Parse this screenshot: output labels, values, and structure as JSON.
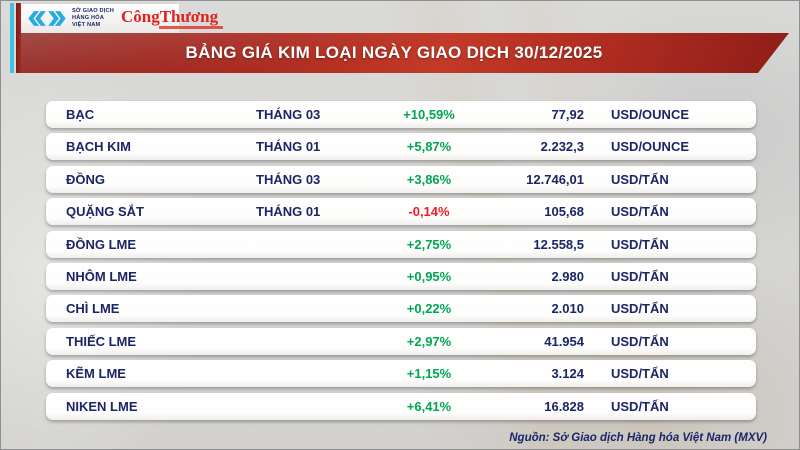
{
  "page": {
    "title_banner": "BẢNG GIÁ KIM LOẠI NGÀY GIAO DỊCH 30/12/2025",
    "source_note": "Nguồn: Sở Giao dịch Hàng hóa Việt Nam (MXV)"
  },
  "logo": {
    "exchange_lines": [
      "SỞ GIAO DỊCH",
      "HÀNG HÓA",
      "VIỆT NAM"
    ],
    "brand": "CôngThương"
  },
  "colors": {
    "up": "#00a651",
    "down": "#ed1c24",
    "navy": "#1b2567",
    "logo_cyan": "#29abe2",
    "brand_red": "#e0231c"
  },
  "table": {
    "rows": [
      {
        "name": "BẠC",
        "month": "THÁNG 03",
        "change": "+10,59%",
        "direction": "up",
        "price": "77,92",
        "unit": "USD/OUNCE"
      },
      {
        "name": "BẠCH KIM",
        "month": "THÁNG 01",
        "change": "+5,87%",
        "direction": "up",
        "price": "2.232,3",
        "unit": "USD/OUNCE"
      },
      {
        "name": "ĐỒNG",
        "month": "THÁNG 03",
        "change": "+3,86%",
        "direction": "up",
        "price": "12.746,01",
        "unit": "USD/TẤN"
      },
      {
        "name": "QUẶNG SẮT",
        "month": "THÁNG 01",
        "change": "-0,14%",
        "direction": "down",
        "price": "105,68",
        "unit": "USD/TẤN"
      },
      {
        "name": "ĐỒNG LME",
        "month": "",
        "change": "+2,75%",
        "direction": "up",
        "price": "12.558,5",
        "unit": "USD/TẤN"
      },
      {
        "name": "NHÔM LME",
        "month": "",
        "change": "+0,95%",
        "direction": "up",
        "price": "2.980",
        "unit": "USD/TẤN"
      },
      {
        "name": "CHÌ LME",
        "month": "",
        "change": "+0,22%",
        "direction": "up",
        "price": "2.010",
        "unit": "USD/TẤN"
      },
      {
        "name": "THIẾC LME",
        "month": "",
        "change": "+2,97%",
        "direction": "up",
        "price": "41.954",
        "unit": "USD/TẤN"
      },
      {
        "name": "KẼM LME",
        "month": "",
        "change": "+1,15%",
        "direction": "up",
        "price": "3.124",
        "unit": "USD/TẤN"
      },
      {
        "name": "NIKEN LME",
        "month": "",
        "change": "+6,41%",
        "direction": "up",
        "price": "16.828",
        "unit": "USD/TẤN"
      }
    ]
  },
  "chart_data": {
    "type": "table",
    "title": "BẢNG GIÁ KIM LOẠI NGÀY GIAO DỊCH 30/12/2025",
    "columns": [
      "commodity",
      "contract_month",
      "percent_change",
      "price",
      "unit"
    ],
    "rows": [
      [
        "BẠC",
        "THÁNG 03",
        "+10,59%",
        "77,92",
        "USD/OUNCE"
      ],
      [
        "BẠCH KIM",
        "THÁNG 01",
        "+5,87%",
        "2.232,3",
        "USD/OUNCE"
      ],
      [
        "ĐỒNG",
        "THÁNG 03",
        "+3,86%",
        "12.746,01",
        "USD/TẤN"
      ],
      [
        "QUẶNG SẮT",
        "THÁNG 01",
        "-0,14%",
        "105,68",
        "USD/TẤN"
      ],
      [
        "ĐỒNG LME",
        "",
        "+2,75%",
        "12.558,5",
        "USD/TẤN"
      ],
      [
        "NHÔM LME",
        "",
        "+0,95%",
        "2.980",
        "USD/TẤN"
      ],
      [
        "CHÌ LME",
        "",
        "+0,22%",
        "2.010",
        "USD/TẤN"
      ],
      [
        "THIẾC LME",
        "",
        "+2,97%",
        "41.954",
        "USD/TẤN"
      ],
      [
        "KẼM LME",
        "",
        "+1,15%",
        "3.124",
        "USD/TẤN"
      ],
      [
        "NIKEN LME",
        "",
        "+6,41%",
        "16.828",
        "USD/TẤN"
      ]
    ],
    "source": "Nguồn: Sở Giao dịch Hàng hóa Việt Nam (MXV)"
  }
}
